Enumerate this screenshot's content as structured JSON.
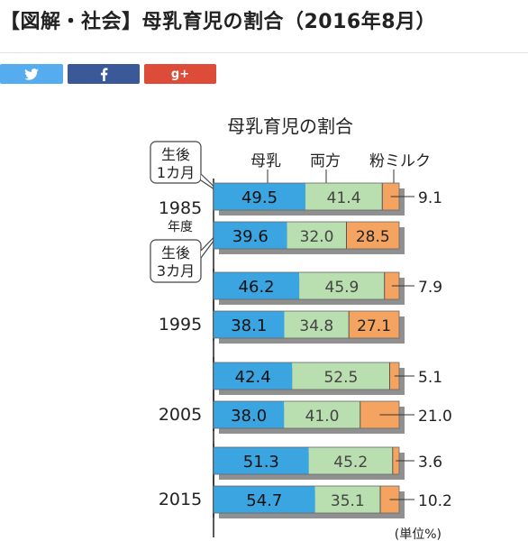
{
  "page": {
    "title": "【図解・社会】母乳育児の割合（2016年8月）"
  },
  "share": {
    "twitter_icon": "twitter-bird-icon",
    "facebook_icon": "facebook-f-icon",
    "google_label": "g+",
    "colors": {
      "twitter": "#55acee",
      "facebook": "#3b5998",
      "google": "#dd4b39"
    }
  },
  "chart_data": {
    "type": "bar",
    "orientation": "horizontal-stacked-100",
    "title": "母乳育児の割合",
    "legend": [
      "母乳",
      "両方",
      "粉ミルク"
    ],
    "callouts": {
      "one_month": [
        "生後",
        "1カ月"
      ],
      "three_months": [
        "生後",
        "3カ月"
      ]
    },
    "year_suffix": "年度",
    "unit": "(単位%)",
    "colors": {
      "breast": "#3aa5e0",
      "both": "#b9deb0",
      "formula": "#f4a460",
      "shadow": "#909090"
    },
    "groups": [
      {
        "year": "1985",
        "rows": [
          {
            "label": "生後1カ月",
            "breast": 49.5,
            "both": 41.4,
            "formula": 9.1,
            "breast_text": "49.5",
            "both_text": "41.4",
            "formula_text": "9.1",
            "formula_outside": true
          },
          {
            "label": "生後3カ月",
            "breast": 39.6,
            "both": 32.0,
            "formula": 28.5,
            "breast_text": "39.6",
            "both_text": "32.0",
            "formula_text": "28.5",
            "formula_outside": false
          }
        ]
      },
      {
        "year": "1995",
        "rows": [
          {
            "label": "生後1カ月",
            "breast": 46.2,
            "both": 45.9,
            "formula": 7.9,
            "breast_text": "46.2",
            "both_text": "45.9",
            "formula_text": "7.9",
            "formula_outside": true
          },
          {
            "label": "生後3カ月",
            "breast": 38.1,
            "both": 34.8,
            "formula": 27.1,
            "breast_text": "38.1",
            "both_text": "34.8",
            "formula_text": "27.1",
            "formula_outside": false
          }
        ]
      },
      {
        "year": "2005",
        "rows": [
          {
            "label": "生後1カ月",
            "breast": 42.4,
            "both": 52.5,
            "formula": 5.1,
            "breast_text": "42.4",
            "both_text": "52.5",
            "formula_text": "5.1",
            "formula_outside": true
          },
          {
            "label": "生後3カ月",
            "breast": 38.0,
            "both": 41.0,
            "formula": 21.0,
            "breast_text": "38.0",
            "both_text": "41.0",
            "formula_text": "21.0",
            "formula_outside": true
          }
        ]
      },
      {
        "year": "2015",
        "rows": [
          {
            "label": "生後1カ月",
            "breast": 51.3,
            "both": 45.2,
            "formula": 3.6,
            "breast_text": "51.3",
            "both_text": "45.2",
            "formula_text": "3.6",
            "formula_outside": true
          },
          {
            "label": "生後3カ月",
            "breast": 54.7,
            "both": 35.1,
            "formula": 10.2,
            "breast_text": "54.7",
            "both_text": "35.1",
            "formula_text": "10.2",
            "formula_outside": true
          }
        ]
      }
    ]
  }
}
